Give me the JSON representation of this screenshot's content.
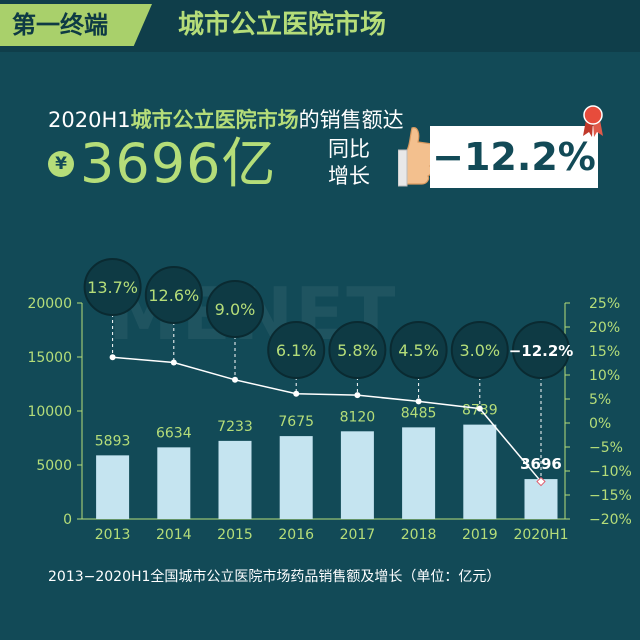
{
  "header": {
    "tag": "第一终端",
    "title": "城市公立医院市场"
  },
  "headline": {
    "prefix": "2020H1",
    "highlight": "城市公立医院市场",
    "suffix": "的销售额达"
  },
  "figure": {
    "currency": "¥",
    "value": "3696亿"
  },
  "yoy": {
    "line1": "同比",
    "line2": "增长",
    "value": "−12.2%"
  },
  "watermark": "MENET",
  "caption": "2013−2020H1全国城市公立医院市场药品销售额及增长（单位：亿元）",
  "colors": {
    "background": "#124a57",
    "accent": "#b5dd79",
    "bar": "#c5e4f0",
    "highlight_bar": "#c5e4f0"
  },
  "chart_data": {
    "type": "bar",
    "categories": [
      "2013",
      "2014",
      "2015",
      "2016",
      "2017",
      "2018",
      "2019",
      "2020H1"
    ],
    "series": [
      {
        "values": [
          5893,
          6634,
          7233,
          7675,
          8120,
          8485,
          8739,
          3696
        ]
      },
      {
        "type": "line",
        "values": [
          13.7,
          12.6,
          9.0,
          6.1,
          5.8,
          4.5,
          3.0,
          -12.2
        ]
      }
    ],
    "bar_labels": [
      "5893",
      "6634",
      "7233",
      "7675",
      "8120",
      "8485",
      "8739",
      "3696"
    ],
    "growth_labels": [
      "13.7%",
      "12.6%",
      "9.0%",
      "6.1%",
      "5.8%",
      "4.5%",
      "3.0%",
      "−12.2%"
    ],
    "y_left": {
      "range": [
        0,
        20000
      ],
      "ticks": [
        "0",
        "5000",
        "10000",
        "15000",
        "20000"
      ]
    },
    "y_right": {
      "range": [
        -20,
        25
      ],
      "ticks": [
        "−20%",
        "−15%",
        "−10%",
        "−5%",
        "0%",
        "5%",
        "10%",
        "15%",
        "20%",
        "25%"
      ]
    },
    "grid": false
  }
}
